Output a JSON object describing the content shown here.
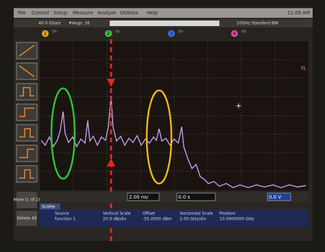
{
  "menu": [
    "File",
    "Control",
    "Setup",
    "Measure",
    "Analyze",
    "Utilities",
    "Help"
  ],
  "clock": "11:09 AM",
  "status": {
    "rate": "40.0 GSa/s",
    "avgs": "#Avgs: 16",
    "bw": "10GHz Standard BW"
  },
  "channels": [
    {
      "number": "1",
      "state": "On"
    },
    {
      "number": "2",
      "state": "On"
    },
    {
      "number": "3",
      "state": "On"
    },
    {
      "number": "4",
      "state": "On"
    }
  ],
  "marker": "f1",
  "sidebar": {
    "more": "More (1 of 2)",
    "delete": "Delete All"
  },
  "controls": {
    "time_scale": "2.00 ns/",
    "delay": "0.0 s",
    "level": "0.0 V"
  },
  "scales": {
    "tab": "Scales",
    "headers": [
      "Source",
      "Vertical Scale",
      "Offset",
      "Horizontal Scale",
      "Position"
    ],
    "row": [
      "function 1",
      "20.0 dB/div",
      "-55.0000 dBm",
      "2.00 GHz/div",
      "10.0000000 GHz"
    ]
  }
}
